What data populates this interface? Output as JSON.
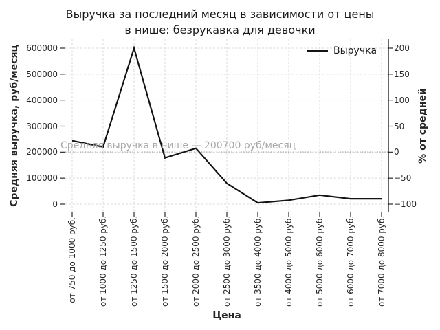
{
  "chart_data": {
    "type": "line",
    "title": "Выручка за последний месяц в зависимости от цены в нише: безрукавка для девочки",
    "title_lines": [
      "Выручка за последний месяц в зависимости от цены",
      "в нише: безрукавка для девочки"
    ],
    "xlabel": "Цена",
    "ylabel_left": "Средняя выручка, руб/месяц",
    "ylabel_right": "% от средней",
    "categories": [
      "от 750 до 1000 руб.",
      "от 1000 до 1250 руб.",
      "от 1250 до 1500 руб.",
      "от 1500 до 2000 руб.",
      "от 2000 до 2500 руб.",
      "от 2500 до 3000 руб.",
      "от 3500 до 4000 руб.",
      "от 4000 до 5000 руб.",
      "от 5000 до 6000 руб.",
      "от 6000 до 7000 руб.",
      "от 7000 до 8000 руб."
    ],
    "series": [
      {
        "name": "Выручка",
        "values": [
          244000,
          220000,
          600000,
          178000,
          215000,
          80000,
          5000,
          15000,
          35000,
          21000,
          21000
        ]
      }
    ],
    "ylim_left": [
      0,
      600000
    ],
    "yticks_left": [
      0,
      100000,
      200000,
      300000,
      400000,
      500000,
      600000
    ],
    "ylim_right": [
      -100,
      200
    ],
    "yticks_right": [
      -100,
      -50,
      0,
      50,
      100,
      150,
      200
    ],
    "average_line": {
      "value": 200700,
      "label": "Средняя выручка в нише — 200700 руб/месяц"
    },
    "legend": {
      "position": "upper right",
      "entries": [
        {
          "label": "Выручка",
          "color": "#141414"
        }
      ]
    },
    "grid": "dashed",
    "colors": {
      "line": "#141414",
      "grid": "#d8d8d8",
      "average_line": "#ababab",
      "average_text": "#a8a8a8",
      "tick_text": "#2b2b2b",
      "title_text": "#1a1a1a",
      "spine": "#141414",
      "background": "#ffffff"
    }
  }
}
